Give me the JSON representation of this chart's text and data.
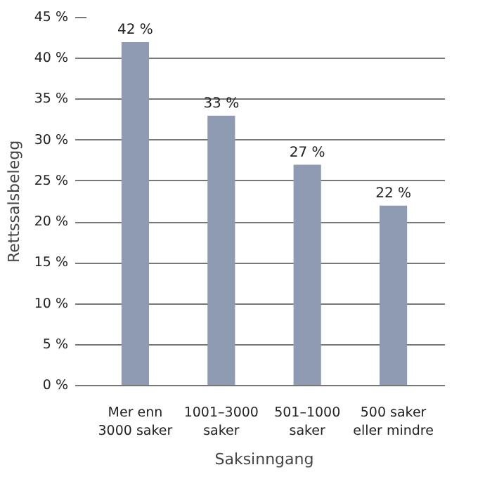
{
  "chart_data": {
    "type": "bar",
    "xlabel": "Saksinngang",
    "ylabel": "Rettssalsbelegg",
    "categories": [
      "Mer enn\n3000 saker",
      "1001–3000\nsaker",
      "501–1000\nsaker",
      "500 saker\neller mindre"
    ],
    "values": [
      42,
      33,
      27,
      22
    ],
    "value_labels": [
      "42 %",
      "33 %",
      "27 %",
      "22 %"
    ],
    "color": "#8e9bb3",
    "ylim": [
      0,
      45
    ],
    "yticks": [
      {
        "value": 0,
        "label": "0 %"
      },
      {
        "value": 5,
        "label": "5 %"
      },
      {
        "value": 10,
        "label": "10 %"
      },
      {
        "value": 15,
        "label": "15 %"
      },
      {
        "value": 20,
        "label": "20 %"
      },
      {
        "value": 25,
        "label": "25 %"
      },
      {
        "value": 30,
        "label": "30 %"
      },
      {
        "value": 35,
        "label": "35 %"
      },
      {
        "value": 40,
        "label": "40 %"
      },
      {
        "value": 45,
        "label": "45 %"
      }
    ],
    "grid": "y"
  }
}
